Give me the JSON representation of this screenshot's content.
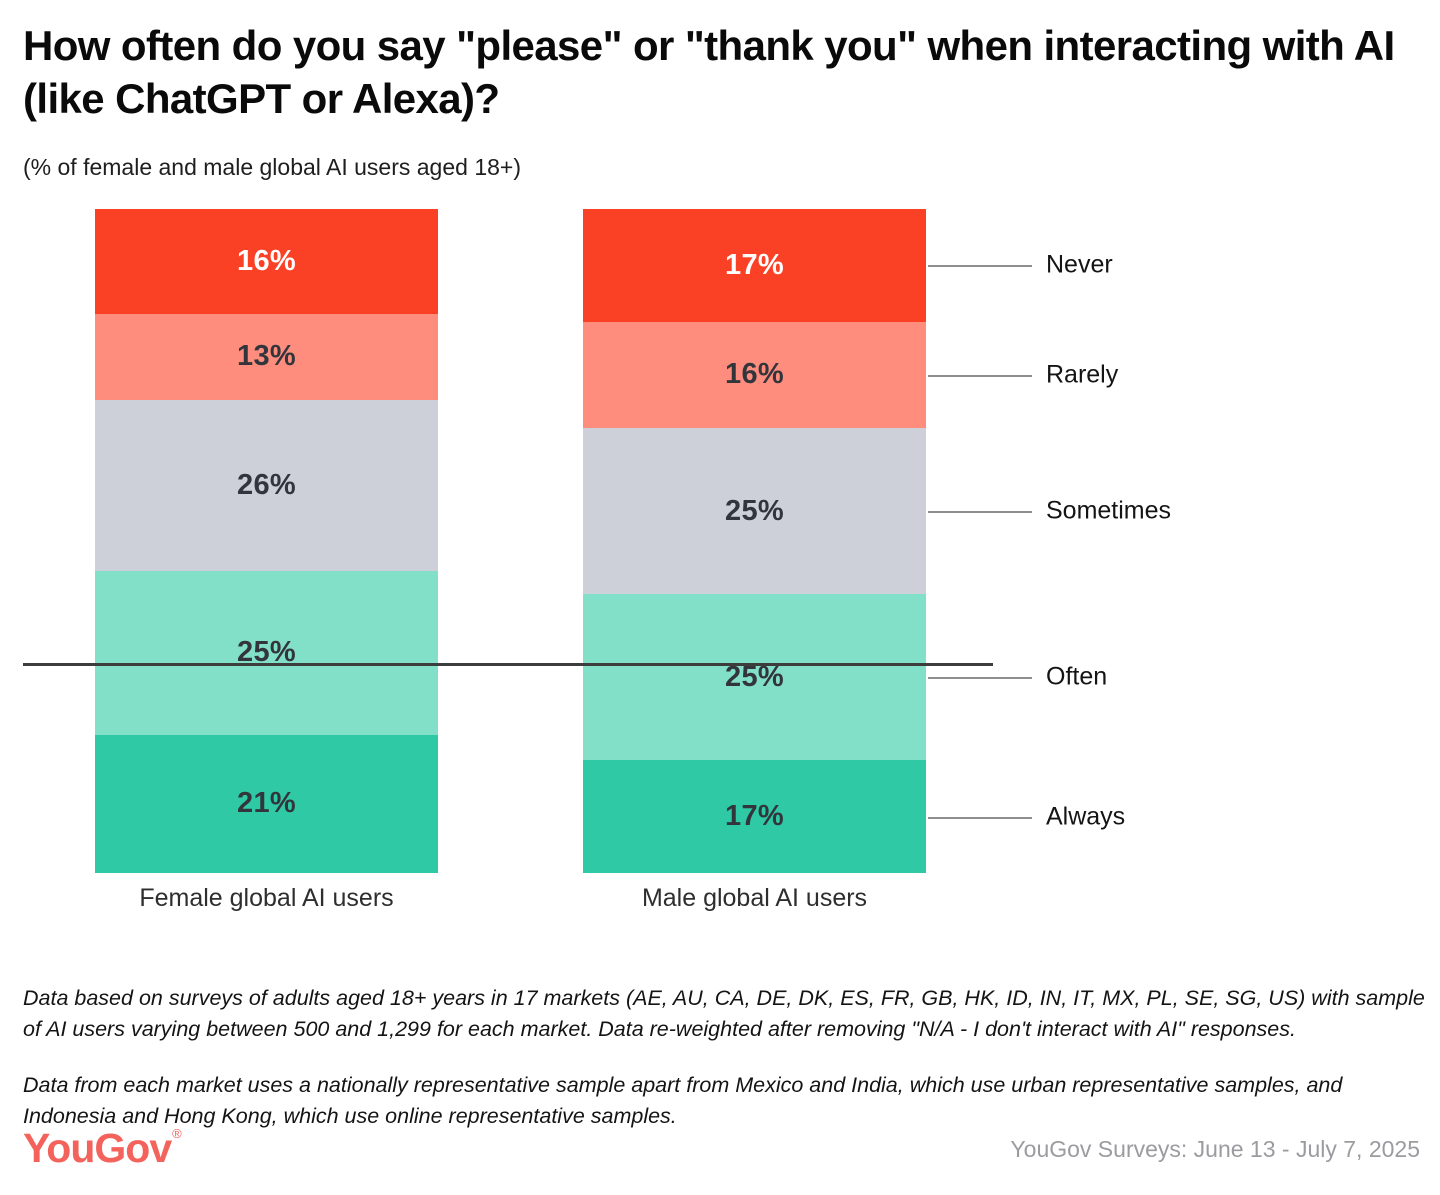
{
  "header": {
    "title": "How often do you say \"please\" or \"thank you\" when interacting with AI (like ChatGPT or Alexa)?",
    "subtitle": "(% of female and male global AI users aged 18+)"
  },
  "chart_data": {
    "type": "bar",
    "stacked": true,
    "orientation": "vertical",
    "categories": [
      "Female global AI users",
      "Male global AI users"
    ],
    "series": [
      {
        "name": "Never",
        "values": [
          16,
          17
        ],
        "color": "#fb4125",
        "label_color": "#ffffff"
      },
      {
        "name": "Rarely",
        "values": [
          13,
          16
        ],
        "color": "#ff8d7e",
        "label_color": "#32363c"
      },
      {
        "name": "Sometimes",
        "values": [
          26,
          25
        ],
        "color": "#cdd0d9",
        "label_color": "#32363c"
      },
      {
        "name": "Often",
        "values": [
          25,
          25
        ],
        "color": "#82dfc8",
        "label_color": "#32363c"
      },
      {
        "name": "Always",
        "values": [
          21,
          17
        ],
        "color": "#2fc9a5",
        "label_color": "#32363c"
      }
    ],
    "value_suffix": "%",
    "legend": [
      "Never",
      "Rarely",
      "Sometimes",
      "Often",
      "Always"
    ],
    "legend_position": "right",
    "grid": false,
    "ylim": [
      0,
      100
    ]
  },
  "footnotes": {
    "p1": "Data based on surveys of adults aged 18+ years in 17 markets (AE, AU, CA, DE, DK, ES, FR, GB, HK, ID, IN, IT, MX, PL, SE, SG, US) with sample of AI users varying between 500 and 1,299 for each market. Data re-weighted after removing \"N/A - I don't interact with AI\" responses.",
    "p2": "Data from each market uses a nationally representative sample apart from Mexico and India, which use urban representative samples, and Indonesia and Hong Kong, which use online representative samples."
  },
  "footer": {
    "logo_text": "YouGov",
    "logo_mark": "®",
    "logo_color": "#f4635b",
    "source": "YouGov Surveys: June 13 - July 7, 2025"
  },
  "colors": {
    "axis_line": "#3d3d3d",
    "leader_line": "#8e8e8e"
  }
}
